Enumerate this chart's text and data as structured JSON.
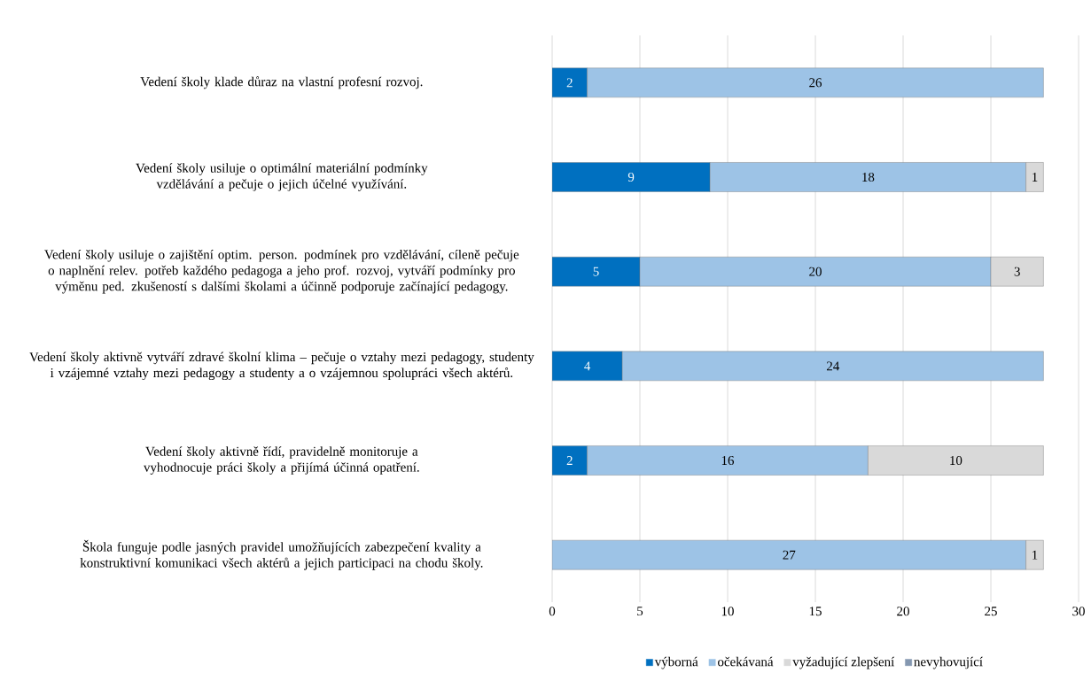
{
  "chart_data": {
    "type": "bar",
    "orientation": "horizontal",
    "stacked": true,
    "categories": [
      "Vedení školy klade důraz na vlastní profesní rozvoj.",
      "Vedení školy usiluje o optimální materiální podmínky vzdělávání a pečuje o jejich účelné využívání.",
      "Vedení školy usiluje o zajištění optim. person. podmínek pro vzdělávání, cíleně pečuje o naplnění relev. potřeb každého pedagoga a jeho prof. rozvoj, vytváří podmínky pro výměnu ped. zkušeností s dalšími školami a účinně podporuje začínající pedagogy.",
      "Vedení školy aktivně vytváří zdravé školní klima – pečuje o vztahy mezi pedagogy, studenty i vzájemné vztahy mezi pedagogy a studenty a o vzájemnou spolupráci všech aktérů.",
      "Vedení školy aktivně řídí, pravidelně monitoruje a vyhodnocuje práci školy a přijímá účinná opatření.",
      "Škola funguje podle jasných pravidel umožňujících zabezpečení kvality a konstruktivní komunikaci všech aktérů a jejich participaci na chodu školy."
    ],
    "series": [
      {
        "name": "výborná",
        "color": "#0070c0",
        "values": [
          2,
          9,
          5,
          4,
          2,
          null
        ]
      },
      {
        "name": "očekávaná",
        "color": "#9dc3e6",
        "values": [
          26,
          18,
          20,
          24,
          16,
          27
        ]
      },
      {
        "name": "vyžadující zlepšení",
        "color": "#d9d9d9",
        "values": [
          null,
          1,
          3,
          null,
          10,
          1
        ]
      },
      {
        "name": "nevyhovující",
        "color": "#8497b0",
        "values": [
          null,
          null,
          null,
          null,
          null,
          null
        ]
      }
    ],
    "xlim": [
      0,
      30
    ],
    "xticks": [
      0,
      5,
      10,
      15,
      20,
      25,
      30
    ],
    "grid": "x",
    "legend": "bottom",
    "data_labels": true
  }
}
